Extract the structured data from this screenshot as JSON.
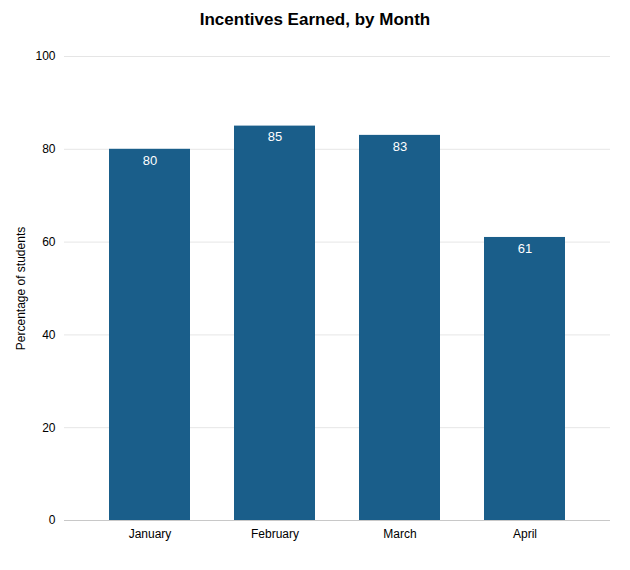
{
  "chart_data": {
    "type": "bar",
    "title": "Incentives Earned, by Month",
    "ylabel": "Percentage of students",
    "categories": [
      "January",
      "February",
      "March",
      "April"
    ],
    "values": [
      80,
      85,
      83,
      61
    ],
    "color": "#1A5E8A",
    "ylim": [
      0,
      100
    ],
    "yticks": [
      0,
      20,
      40,
      60,
      80,
      100
    ],
    "grid": true,
    "data_labels": true
  }
}
